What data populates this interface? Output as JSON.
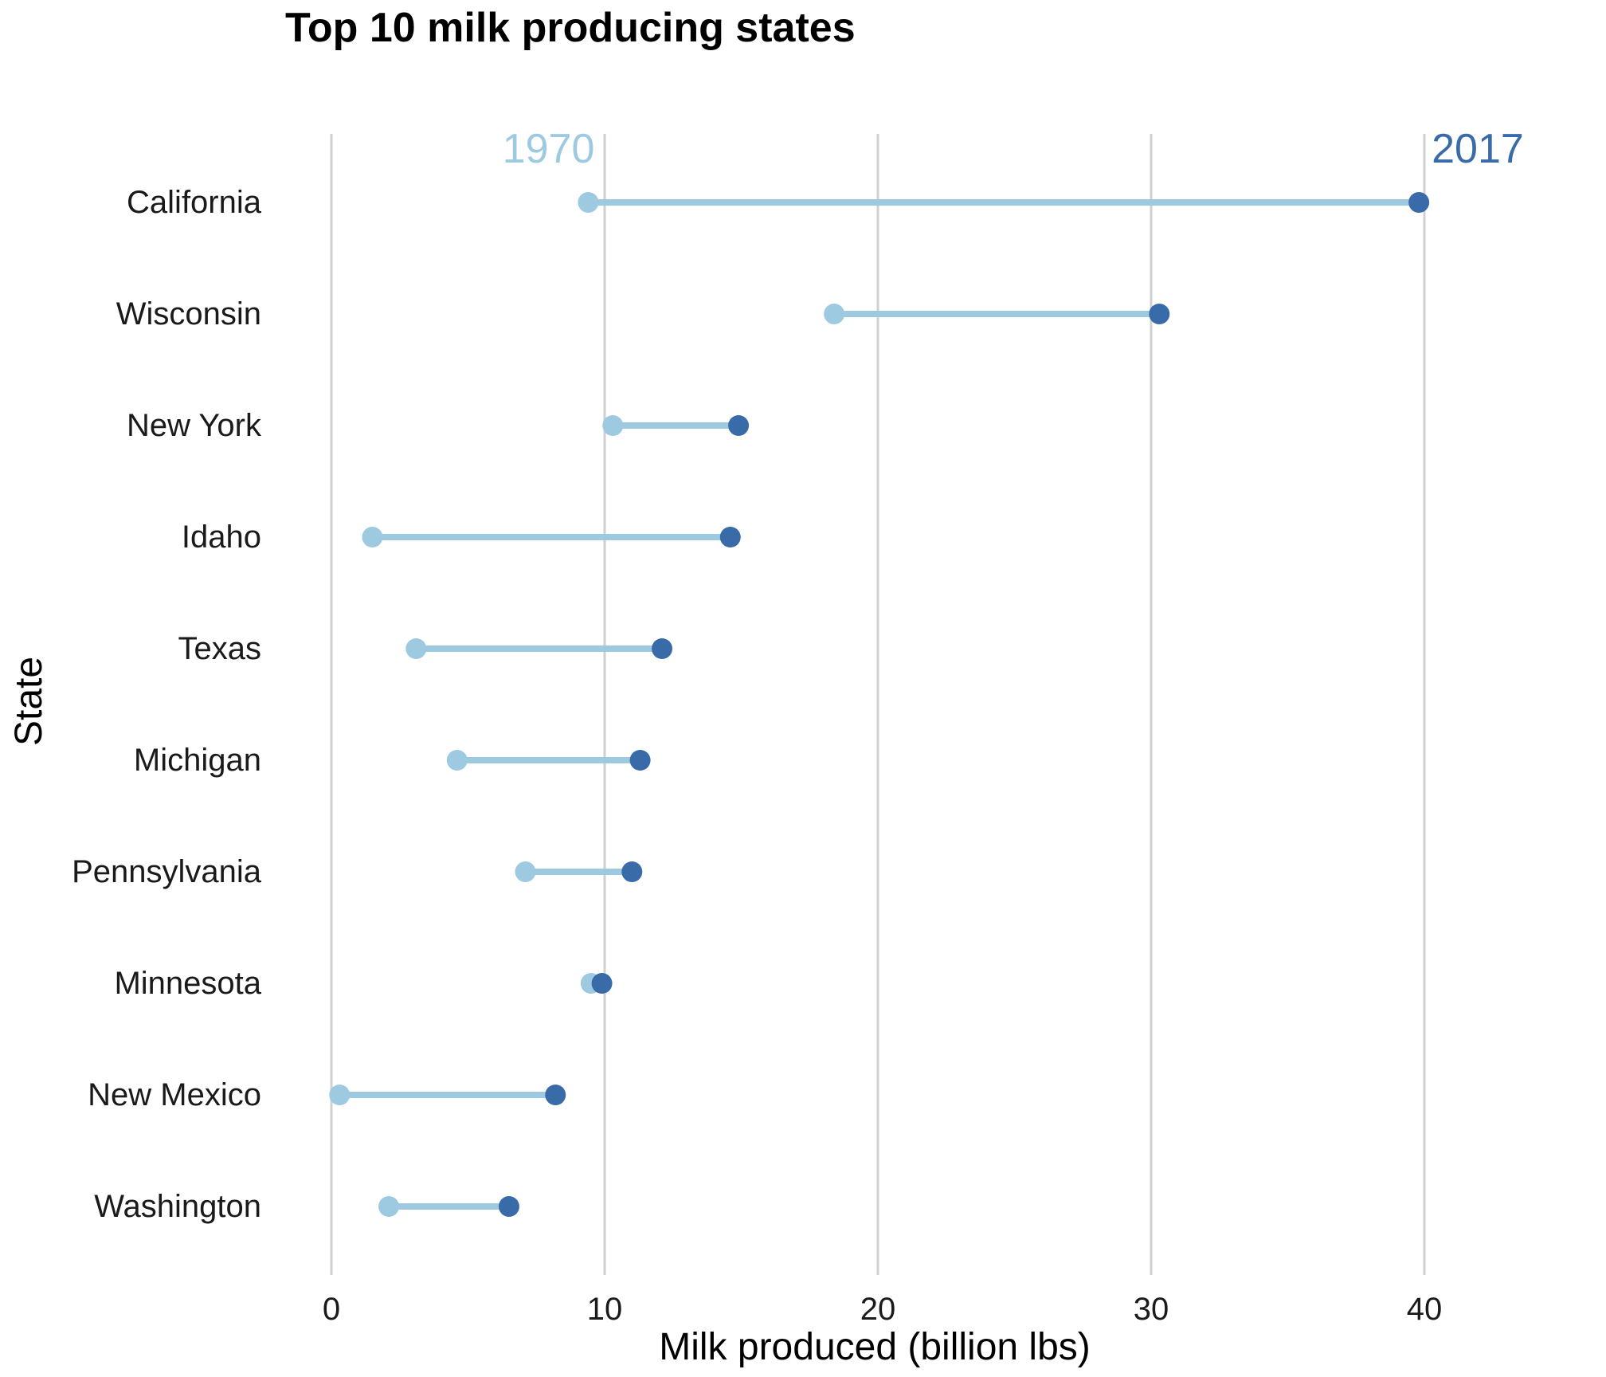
{
  "colors": {
    "start": "#9ecae1",
    "end": "#3a6ba9",
    "grid": "#d0d0d0"
  },
  "chart_data": {
    "type": "dumbbell",
    "title": "Top 10 milk producing states",
    "xlabel": "Milk produced (billion lbs)",
    "ylabel": "State",
    "xlim": [
      0,
      44.5
    ],
    "xticks": [
      0,
      10,
      20,
      30,
      40
    ],
    "grid": "vertical",
    "categories": [
      "California",
      "Wisconsin",
      "New York",
      "Idaho",
      "Texas",
      "Michigan",
      "Pennsylvania",
      "Minnesota",
      "New Mexico",
      "Washington"
    ],
    "series": [
      {
        "name": "1970",
        "color": "#9ecae1",
        "values": [
          9.4,
          18.4,
          10.3,
          1.5,
          3.1,
          4.6,
          7.1,
          9.5,
          0.3,
          2.1
        ]
      },
      {
        "name": "2017",
        "color": "#3a6ba9",
        "values": [
          39.8,
          30.3,
          14.9,
          14.6,
          12.1,
          11.3,
          11.0,
          9.9,
          8.2,
          6.5
        ]
      }
    ]
  }
}
